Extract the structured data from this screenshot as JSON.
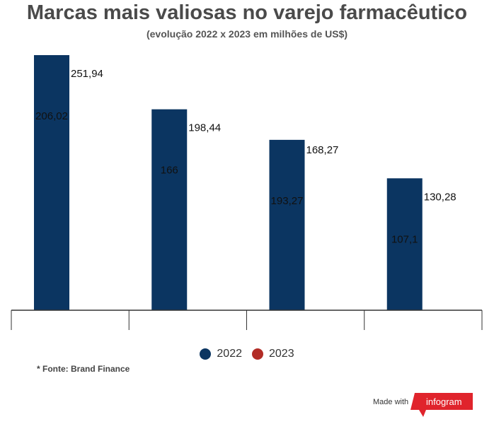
{
  "header": {
    "title": "Marcas mais valiosas no varejo farmacêutico",
    "subtitle": "(evolução 2022 x 2023 em milhões de US$)"
  },
  "chart_data": {
    "type": "bar",
    "categories": [
      "",
      "",
      "",
      ""
    ],
    "series": [
      {
        "name": "2022",
        "color": "#0b3561",
        "values": [
          206.02,
          166,
          193.27,
          107.1
        ],
        "labels": [
          "206,02",
          "166",
          "193,27",
          "107,1"
        ]
      },
      {
        "name": "2023",
        "color": "#b22c26",
        "values": [
          251.94,
          198.44,
          168.27,
          130.28
        ],
        "labels": [
          "251,94",
          "198,44",
          "168,27",
          "130,28"
        ]
      }
    ],
    "title": "Marcas mais valiosas no varejo farmacêutico",
    "subtitle": "(evolução 2022 x 2023 em milhões de US$)",
    "xlabel": "",
    "ylabel": "",
    "ylim": [
      0,
      251.94
    ],
    "grid": false,
    "legend": "bottom"
  },
  "footer": {
    "source": "* Fonte: Brand Finance",
    "made_with": "Made with",
    "brand": "infogram"
  },
  "colors": {
    "series_2022": "#0b3561",
    "series_2023": "#b22c26",
    "brand": "#e0242c"
  }
}
